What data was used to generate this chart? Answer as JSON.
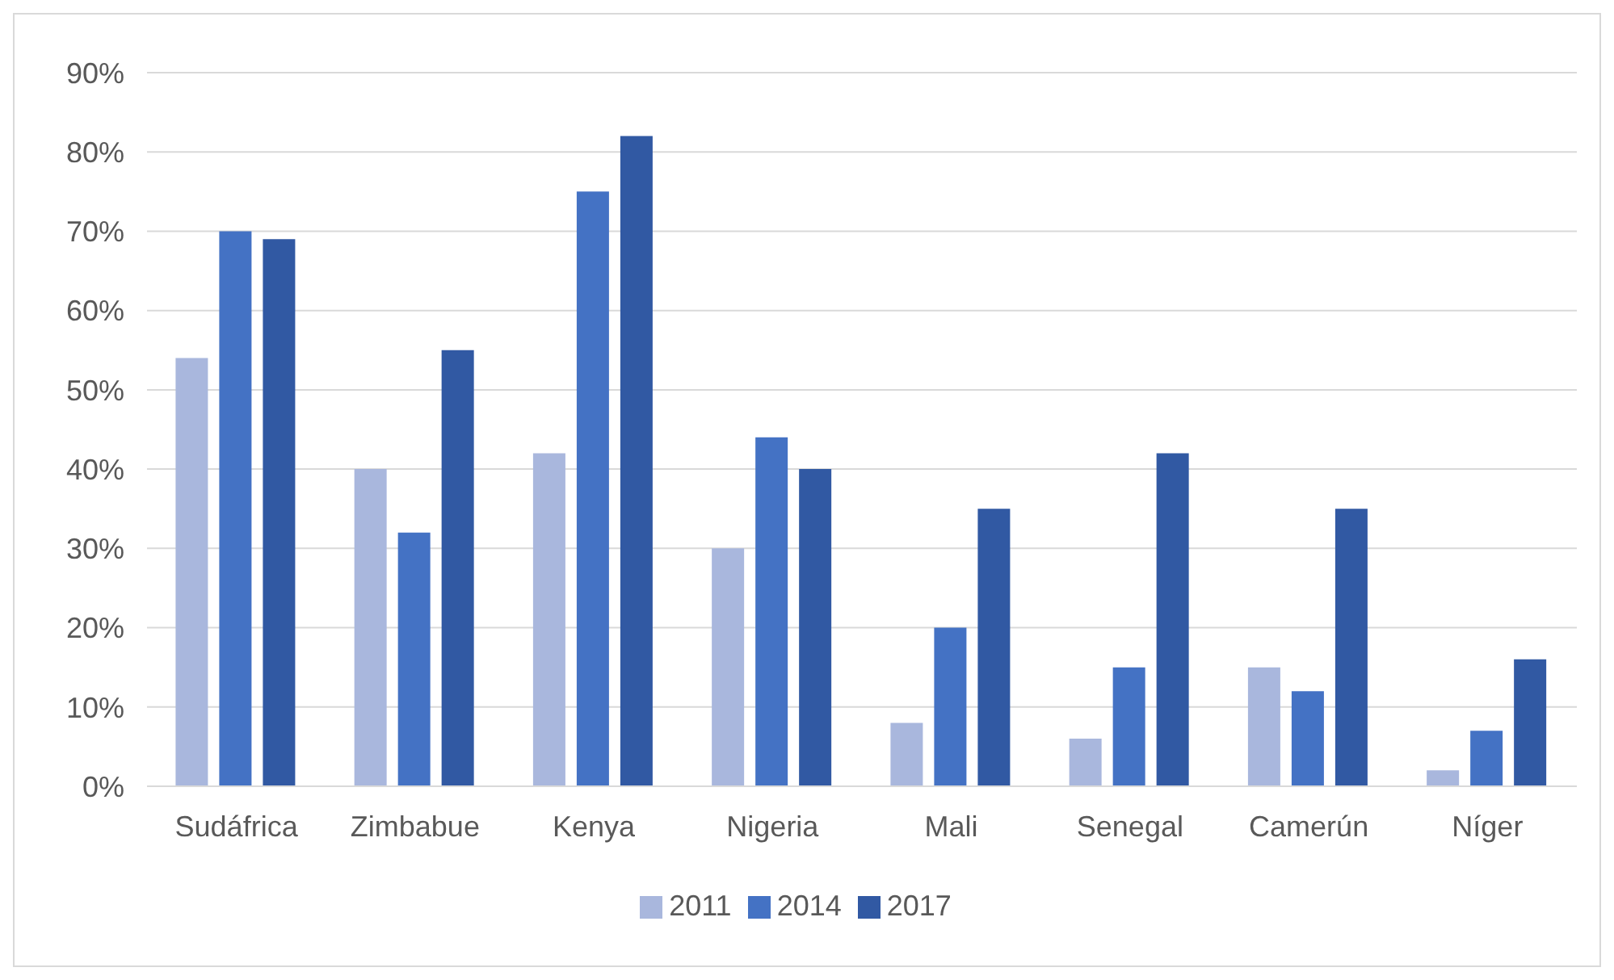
{
  "chart_data": {
    "type": "bar",
    "categories": [
      "Sudáfrica",
      "Zimbabue",
      "Kenya",
      "Nigeria",
      "Mali",
      "Senegal",
      "Camerún",
      "Níger"
    ],
    "series": [
      {
        "name": "2011",
        "color": "#a9b7dd",
        "values": [
          54,
          40,
          42,
          30,
          8,
          6,
          15,
          2
        ]
      },
      {
        "name": "2014",
        "color": "#4472c4",
        "values": [
          70,
          32,
          75,
          44,
          20,
          15,
          12,
          7
        ]
      },
      {
        "name": "2017",
        "color": "#3159a3",
        "values": [
          69,
          55,
          82,
          40,
          35,
          42,
          35,
          16
        ]
      }
    ],
    "ylim": [
      0,
      90
    ],
    "yticks": [
      {
        "value": 0,
        "label": "0%"
      },
      {
        "value": 10,
        "label": "10%"
      },
      {
        "value": 20,
        "label": "20%"
      },
      {
        "value": 30,
        "label": "30%"
      },
      {
        "value": 40,
        "label": "40%"
      },
      {
        "value": 50,
        "label": "50%"
      },
      {
        "value": 60,
        "label": "60%"
      },
      {
        "value": 70,
        "label": "70%"
      },
      {
        "value": 80,
        "label": "80%"
      },
      {
        "value": 90,
        "label": "90%"
      }
    ],
    "grid": "y",
    "legend": "bottom"
  }
}
